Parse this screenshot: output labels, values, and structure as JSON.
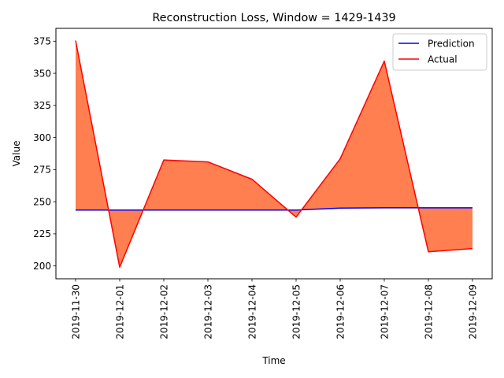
{
  "chart_data": {
    "type": "line",
    "title": "Reconstruction Loss, Window = 1429-1439",
    "xlabel": "Time",
    "ylabel": "Value",
    "categories": [
      "2019-11-30",
      "2019-12-01",
      "2019-12-02",
      "2019-12-03",
      "2019-12-04",
      "2019-12-05",
      "2019-12-06",
      "2019-12-07",
      "2019-12-08",
      "2019-12-09"
    ],
    "series": [
      {
        "name": "Prediction",
        "color": "#0000ff",
        "values": [
          243.5,
          243.5,
          243.5,
          243.5,
          243.5,
          243.5,
          245.0,
          245.3,
          245.3,
          245.3
        ]
      },
      {
        "name": "Actual",
        "color": "#ff0000",
        "values": [
          375.5,
          199.0,
          282.5,
          281.0,
          267.5,
          238.0,
          283.5,
          359.5,
          211.0,
          213.5
        ]
      }
    ],
    "fill_color": "#ff7f50",
    "ylim": [
      190,
      385
    ],
    "yticks": [
      200,
      225,
      250,
      275,
      300,
      325,
      350,
      375
    ],
    "grid": false,
    "legend_position": "upper-right"
  }
}
